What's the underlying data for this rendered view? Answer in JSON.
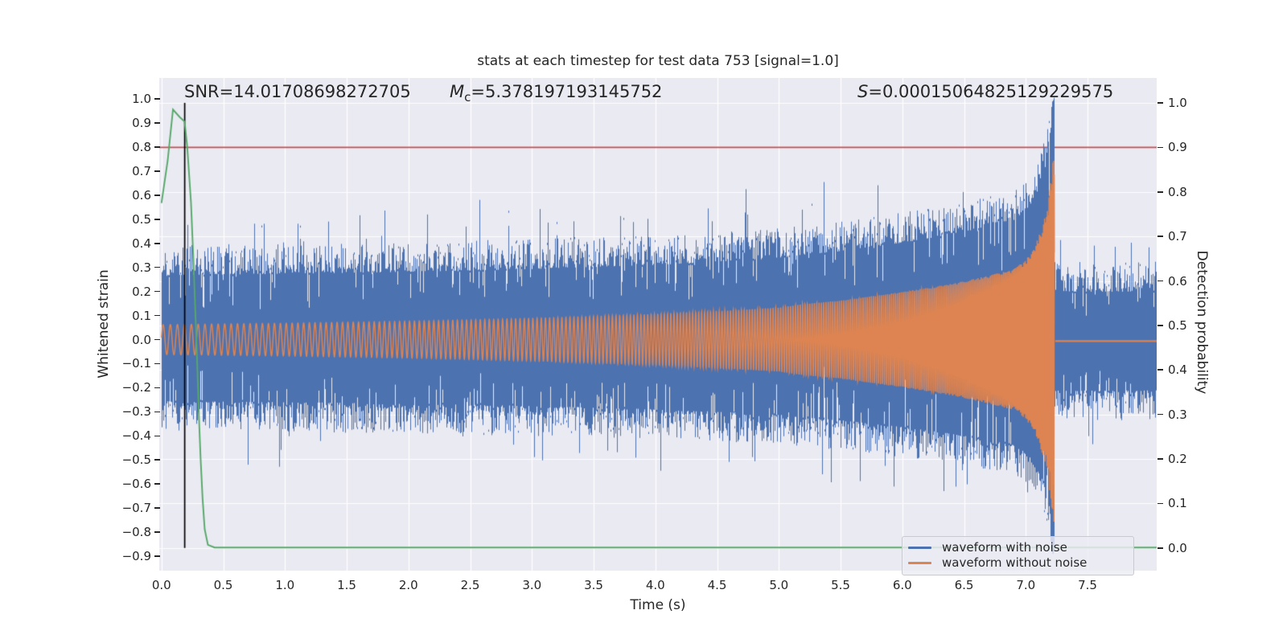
{
  "figure": {
    "title": "stats at each timestep for test data 753 [signal=1.0]"
  },
  "annotations": {
    "snr": "SNR=14.01708698272705",
    "mc_symbol": "M",
    "mc_subscript": "c",
    "mc_value": "=5.378197193145752",
    "s_symbol": "S",
    "s_value": "=0.00015064825129229575"
  },
  "axes": {
    "xlabel": "Time (s)",
    "ylabel_left": "Whitened strain",
    "ylabel_right": "Detection probability"
  },
  "legend": {
    "entries": [
      {
        "label": "waveform with noise",
        "color": "#4C72B0"
      },
      {
        "label": "waveform without noise",
        "color": "#DD8452"
      }
    ]
  },
  "colors": {
    "axes_background": "#EAEAF2",
    "grid": "#FFFFFF",
    "text": "#262626",
    "noisy_waveform": "#4C72B0",
    "clean_waveform": "#DD8452",
    "probability_line": "#55A868",
    "threshold_line": "#C44E52",
    "event_marker": "#000000"
  },
  "chart_data": {
    "type": "line",
    "title": "stats at each timestep for test data 753 [signal=1.0]",
    "xlabel": "Time (s)",
    "ylabel_left": "Whitened strain",
    "ylabel_right": "Detection probability",
    "xlim": [
      -0.018,
      8.06
    ],
    "ylim_left": [
      -0.96,
      1.087
    ],
    "ylim_right": [
      -0.051,
      1.056
    ],
    "x_ticks": [
      0.0,
      0.5,
      1.0,
      1.5,
      2.0,
      2.5,
      3.0,
      3.5,
      4.0,
      4.5,
      5.0,
      5.5,
      6.0,
      6.5,
      7.0,
      7.5
    ],
    "y_ticks_left": [
      1.0,
      0.9,
      0.8,
      0.7,
      0.6,
      0.5,
      0.4,
      0.3,
      0.2,
      0.1,
      0.0,
      -0.1,
      -0.2,
      -0.3,
      -0.4,
      -0.5,
      -0.6,
      -0.7,
      -0.8,
      -0.9
    ],
    "y_ticks_right": [
      1.0,
      0.9,
      0.8,
      0.7,
      0.6,
      0.5,
      0.4,
      0.3,
      0.2,
      0.1,
      0.0
    ],
    "grid": {
      "horizontal_from": "right_axis_ticks",
      "vertical_from": "x_ticks",
      "color": "#FFFFFF"
    },
    "stats": {
      "snr": 14.01708698272705,
      "chirp_mass": 5.378197193145752,
      "s_statistic": 0.00015064825129229575,
      "signal": 1.0,
      "test_data_index": 753
    },
    "series": [
      {
        "name": "waveform with noise",
        "color": "#4C72B0",
        "axis": "left",
        "kind": "noise_band",
        "noise": {
          "base_halfwidth": 0.205,
          "variability": 0.125,
          "spike_probability": 0.045,
          "spike_extra_max": 0.14,
          "notch_probability": 0.13,
          "seed": 20753
        },
        "signal_top_factor": 1.0,
        "signal_bottom_factor": 0.8,
        "clip_top": 1.005,
        "clip_bottom": -0.88
      },
      {
        "name": "waveform without noise",
        "color": "#DD8452",
        "axis": "left",
        "kind": "chirp",
        "merger_time": 7.232,
        "post_merger_level": -0.006,
        "amplitude_envelope": [
          [
            0,
            0.062
          ],
          [
            1,
            0.068
          ],
          [
            2,
            0.076
          ],
          [
            3,
            0.088
          ],
          [
            4,
            0.105
          ],
          [
            4.5,
            0.118
          ],
          [
            5,
            0.133
          ],
          [
            5.2,
            0.148
          ],
          [
            5.5,
            0.162
          ],
          [
            6,
            0.198
          ],
          [
            6.4,
            0.232
          ],
          [
            6.7,
            0.266
          ],
          [
            6.9,
            0.292
          ],
          [
            7.0,
            0.33
          ],
          [
            7.05,
            0.37
          ],
          [
            7.1,
            0.42
          ],
          [
            7.15,
            0.5
          ],
          [
            7.18,
            0.58
          ],
          [
            7.21,
            0.7
          ],
          [
            7.225,
            0.78
          ],
          [
            7.232,
            0.72
          ]
        ],
        "frequency_hz": [
          [
            0,
            17
          ],
          [
            1,
            21
          ],
          [
            2,
            25
          ],
          [
            3,
            29
          ],
          [
            3.5,
            32
          ],
          [
            4,
            37
          ],
          [
            4.5,
            43
          ],
          [
            5,
            49
          ],
          [
            5.5,
            56
          ],
          [
            6,
            64
          ],
          [
            6.5,
            75
          ],
          [
            6.8,
            85
          ],
          [
            7.0,
            97
          ],
          [
            7.1,
            110
          ],
          [
            7.15,
            125
          ],
          [
            7.2,
            155
          ],
          [
            7.232,
            190
          ]
        ]
      },
      {
        "name": "detection probability",
        "color": "#55A868",
        "axis": "right",
        "kind": "line",
        "points": [
          [
            0,
            0.775
          ],
          [
            0.05,
            0.87
          ],
          [
            0.093,
            0.985
          ],
          [
            0.148,
            0.968
          ],
          [
            0.187,
            0.958
          ],
          [
            0.209,
            0.9
          ],
          [
            0.239,
            0.776
          ],
          [
            0.261,
            0.63
          ],
          [
            0.285,
            0.45
          ],
          [
            0.304,
            0.29
          ],
          [
            0.317,
            0.2
          ],
          [
            0.333,
            0.11
          ],
          [
            0.35,
            0.042
          ],
          [
            0.376,
            0.007
          ],
          [
            0.43,
            0.001
          ],
          [
            8.06,
            0.001
          ]
        ]
      }
    ],
    "reference_lines": {
      "detection_threshold": {
        "axis": "right",
        "value": 0.9,
        "color": "#C44E52"
      },
      "event_time_marker": {
        "x": 0.188,
        "axis": "right",
        "ymin": 0.0,
        "ymax": 1.0,
        "color": "#000000"
      }
    },
    "legend_entries": [
      "waveform with noise",
      "waveform without noise"
    ],
    "legend_position": "lower right"
  }
}
